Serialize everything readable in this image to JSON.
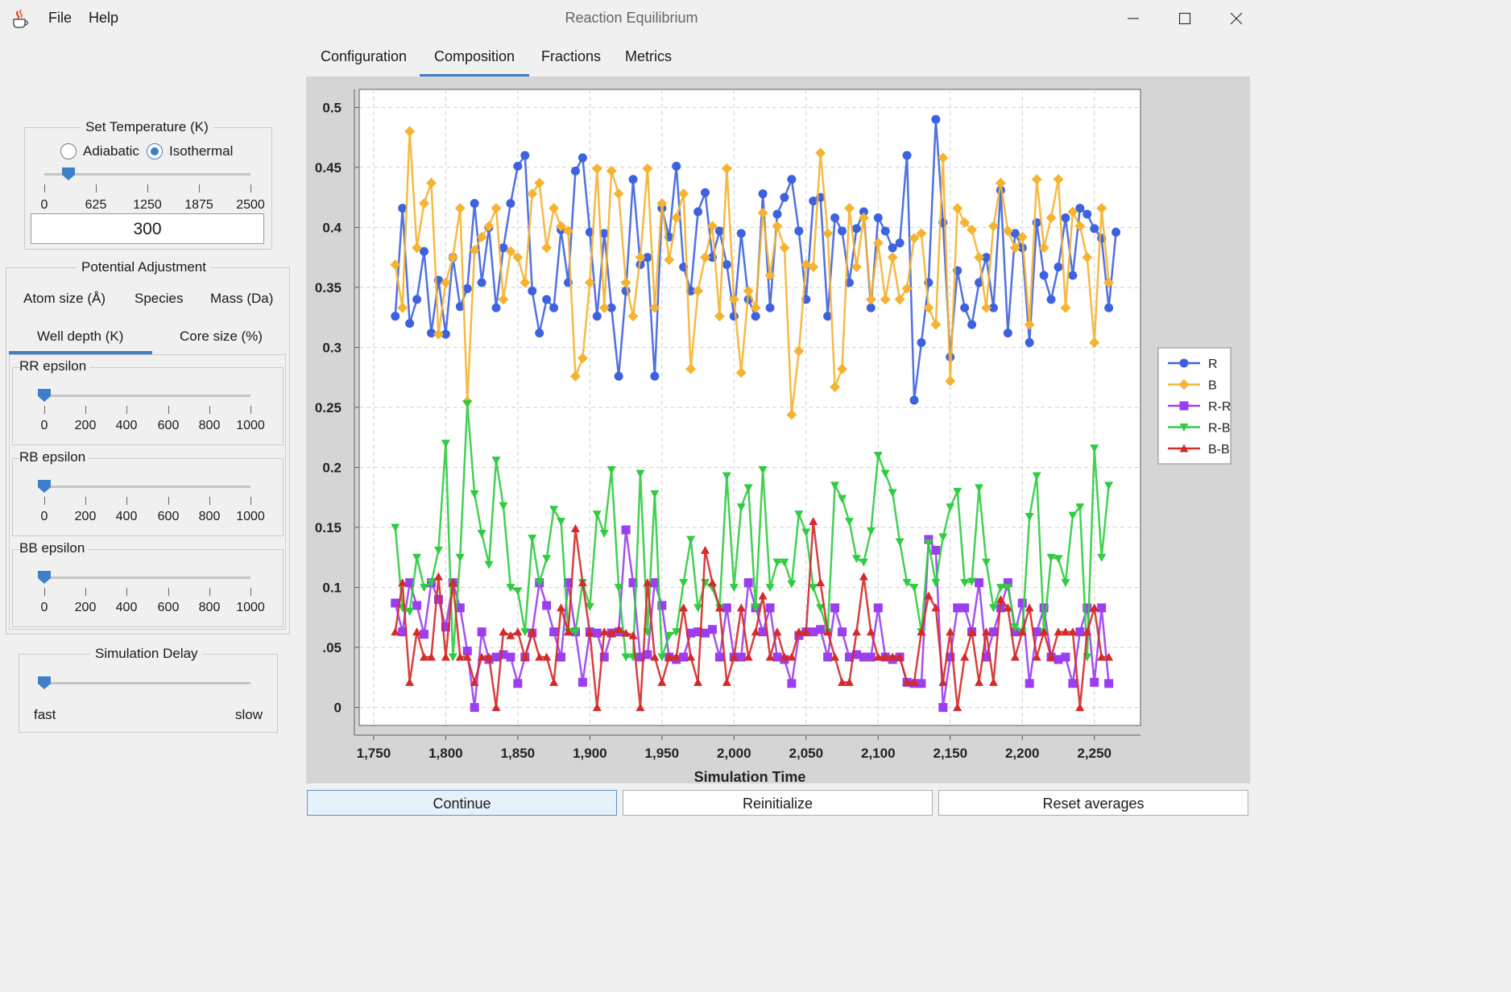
{
  "window": {
    "title": "Reaction Equilibrium",
    "menu": [
      "File",
      "Help"
    ]
  },
  "tabs": [
    "Configuration",
    "Composition",
    "Fractions",
    "Metrics"
  ],
  "active_tab": "Composition",
  "temperature": {
    "title": "Set Temperature (K)",
    "modes": [
      "Adiabatic",
      "Isothermal"
    ],
    "selected_mode": "Isothermal",
    "slider_ticks": [
      "0",
      "625",
      "1250",
      "1875",
      "2500"
    ],
    "slider_min": 0,
    "slider_max": 2500,
    "value": "300"
  },
  "potential": {
    "title": "Potential Adjustment",
    "tabs_row1": [
      "Atom size (Å)",
      "Species",
      "Mass (Da)"
    ],
    "tabs_row2": [
      "Well depth (K)",
      "Core size (%)"
    ],
    "active_tab": "Well depth (K)",
    "sliders": [
      {
        "label": "RR epsilon",
        "value": 0
      },
      {
        "label": "RB epsilon",
        "value": 0
      },
      {
        "label": "BB epsilon",
        "value": 0
      }
    ],
    "ticks": [
      "0",
      "200",
      "400",
      "600",
      "800",
      "1000"
    ],
    "min": 0,
    "max": 1000
  },
  "delay": {
    "title": "Simulation Delay",
    "left_label": "fast",
    "right_label": "slow",
    "value": 0
  },
  "buttons": [
    "Continue",
    "Reinitialize",
    "Reset averages"
  ],
  "chart_data": {
    "type": "line",
    "xlabel": "Simulation Time",
    "ylabel": "",
    "xlim": [
      1740,
      2282
    ],
    "ylim": [
      -0.015,
      0.515
    ],
    "x_ticks": [
      1750,
      1800,
      1850,
      1900,
      1950,
      2000,
      2050,
      2100,
      2150,
      2200,
      2250
    ],
    "x_tick_labels": [
      "1,750",
      "1,800",
      "1,850",
      "1,900",
      "1,950",
      "2,000",
      "2,050",
      "2,100",
      "2,150",
      "2,200",
      "2,250"
    ],
    "y_ticks": [
      0,
      0.05,
      0.1,
      0.15,
      0.2,
      0.25,
      0.3,
      0.35,
      0.4,
      0.45,
      0.5
    ],
    "y_tick_labels": [
      "0",
      ".05",
      "0.1",
      "0.15",
      "0.2",
      "0.25",
      "0.3",
      "0.35",
      "0.4",
      "0.45",
      "0.5"
    ],
    "grid": true,
    "legend_position": "right",
    "x_start": 1765,
    "x_step": 5,
    "series": [
      {
        "name": "R",
        "color": "#3d62e0",
        "marker": "circle",
        "values": [
          0.326,
          0.416,
          0.32,
          0.34,
          0.38,
          0.312,
          0.356,
          0.311,
          0.375,
          0.334,
          0.349,
          0.42,
          0.354,
          0.4,
          0.333,
          0.383,
          0.42,
          0.451,
          0.46,
          0.347,
          0.312,
          0.34,
          0.333,
          0.398,
          0.354,
          0.447,
          0.458,
          0.396,
          0.326,
          0.395,
          0.333,
          0.276,
          0.347,
          0.44,
          0.369,
          0.375,
          0.276,
          0.416,
          0.392,
          0.451,
          0.367,
          0.347,
          0.413,
          0.429,
          0.375,
          0.397,
          0.369,
          0.326,
          0.395,
          0.34,
          0.326,
          0.428,
          0.333,
          0.411,
          0.425,
          0.44,
          0.397,
          0.34,
          0.422,
          0.425,
          0.326,
          0.408,
          0.397,
          0.354,
          0.399,
          0.413,
          0.333,
          0.408,
          0.397,
          0.383,
          0.387,
          0.46,
          0.256,
          0.304,
          0.354,
          0.49,
          0.404,
          0.292,
          0.364,
          0.333,
          0.319,
          0.354,
          0.375,
          0.333,
          0.431,
          0.312,
          0.395,
          0.383,
          0.304,
          0.404,
          0.36,
          0.34,
          0.367,
          0.408,
          0.36,
          0.416,
          0.411,
          0.399,
          0.391,
          0.333,
          0.396
        ]
      },
      {
        "name": "B",
        "color": "#f5b330",
        "marker": "diamond",
        "values": [
          0.369,
          0.333,
          0.48,
          0.383,
          0.42,
          0.437,
          0.311,
          0.354,
          0.375,
          0.416,
          0.255,
          0.381,
          0.392,
          0.401,
          0.416,
          0.34,
          0.38,
          0.375,
          0.354,
          0.428,
          0.437,
          0.383,
          0.416,
          0.401,
          0.397,
          0.276,
          0.291,
          0.354,
          0.449,
          0.333,
          0.447,
          0.428,
          0.354,
          0.326,
          0.375,
          0.449,
          0.333,
          0.42,
          0.373,
          0.408,
          0.428,
          0.282,
          0.347,
          0.375,
          0.401,
          0.326,
          0.449,
          0.34,
          0.279,
          0.347,
          0.333,
          0.412,
          0.36,
          0.401,
          0.383,
          0.244,
          0.297,
          0.369,
          0.367,
          0.462,
          0.395,
          0.267,
          0.282,
          0.416,
          0.367,
          0.408,
          0.34,
          0.387,
          0.34,
          0.375,
          0.34,
          0.349,
          0.391,
          0.395,
          0.333,
          0.319,
          0.458,
          0.272,
          0.416,
          0.404,
          0.398,
          0.375,
          0.333,
          0.401,
          0.437,
          0.397,
          0.383,
          0.392,
          0.319,
          0.44,
          0.383,
          0.408,
          0.44,
          0.333,
          0.413,
          0.401,
          0.375,
          0.304,
          0.416,
          0.354
        ]
      },
      {
        "name": "R-R",
        "color": "#9b3ef0",
        "marker": "square",
        "values": [
          0.087,
          0.063,
          0.104,
          0.085,
          0.061,
          0.104,
          0.09,
          0.067,
          0.104,
          0.083,
          0.047,
          0.0,
          0.063,
          0.04,
          0.042,
          0.044,
          0.042,
          0.02,
          0.042,
          0.062,
          0.104,
          0.085,
          0.063,
          0.042,
          0.104,
          0.063,
          0.021,
          0.063,
          0.062,
          0.042,
          0.062,
          0.063,
          0.148,
          0.104,
          0.042,
          0.044,
          0.104,
          0.085,
          0.042,
          0.04,
          0.042,
          0.062,
          0.063,
          0.062,
          0.065,
          0.042,
          0.083,
          0.042,
          0.042,
          0.104,
          0.083,
          0.063,
          0.083,
          0.042,
          0.04,
          0.02,
          0.06,
          0.063,
          0.063,
          0.065,
          0.042,
          0.083,
          0.063,
          0.042,
          0.044,
          0.042,
          0.042,
          0.083,
          0.042,
          0.04,
          0.042,
          0.021,
          0.02,
          0.02,
          0.14,
          0.131,
          0.0,
          0.042,
          0.083,
          0.083,
          0.063,
          0.104,
          0.042,
          0.063,
          0.083,
          0.104,
          0.063,
          0.087,
          0.02,
          0.063,
          0.083,
          0.042,
          0.04,
          0.042,
          0.02,
          0.063,
          0.083,
          0.021,
          0.083,
          0.02
        ]
      },
      {
        "name": "R-B",
        "color": "#2ecc40",
        "marker": "triangle-down",
        "values": [
          0.15,
          0.083,
          0.08,
          0.125,
          0.1,
          0.104,
          0.131,
          0.22,
          0.042,
          0.125,
          0.253,
          0.178,
          0.145,
          0.119,
          0.206,
          0.168,
          0.1,
          0.097,
          0.063,
          0.141,
          0.104,
          0.124,
          0.165,
          0.155,
          0.063,
          0.063,
          0.104,
          0.084,
          0.161,
          0.145,
          0.198,
          0.1,
          0.042,
          0.042,
          0.195,
          0.063,
          0.178,
          0.042,
          0.06,
          0.063,
          0.104,
          0.14,
          0.083,
          0.104,
          0.1,
          0.083,
          0.193,
          0.1,
          0.167,
          0.183,
          0.083,
          0.198,
          0.1,
          0.121,
          0.121,
          0.103,
          0.161,
          0.146,
          0.1,
          0.083,
          0.063,
          0.185,
          0.174,
          0.155,
          0.124,
          0.121,
          0.147,
          0.21,
          0.195,
          0.179,
          0.138,
          0.104,
          0.1,
          0.063,
          0.137,
          0.104,
          0.142,
          0.167,
          0.18,
          0.104,
          0.105,
          0.183,
          0.121,
          0.083,
          0.1,
          0.1,
          0.067,
          0.063,
          0.159,
          0.193,
          0.063,
          0.125,
          0.124,
          0.104,
          0.16,
          0.167,
          0.042,
          0.216,
          0.125,
          0.185
        ]
      },
      {
        "name": "B-B",
        "color": "#d42a2a",
        "marker": "triangle-up",
        "values": [
          0.063,
          0.104,
          0.021,
          0.063,
          0.042,
          0.042,
          0.109,
          0.042,
          0.104,
          0.042,
          0.042,
          0.021,
          0.042,
          0.042,
          0.0,
          0.063,
          0.06,
          0.063,
          0.042,
          0.063,
          0.042,
          0.042,
          0.021,
          0.083,
          0.063,
          0.149,
          0.104,
          0.062,
          0.0,
          0.063,
          0.062,
          0.065,
          0.062,
          0.06,
          0.0,
          0.104,
          0.042,
          0.021,
          0.042,
          0.042,
          0.083,
          0.042,
          0.021,
          0.131,
          0.104,
          0.083,
          0.021,
          0.042,
          0.083,
          0.042,
          0.063,
          0.093,
          0.042,
          0.063,
          0.042,
          0.042,
          0.063,
          0.063,
          0.155,
          0.104,
          0.063,
          0.042,
          0.021,
          0.021,
          0.063,
          0.109,
          0.063,
          0.042,
          0.042,
          0.042,
          0.042,
          0.021,
          0.021,
          0.063,
          0.093,
          0.083,
          0.021,
          0.063,
          0.0,
          0.042,
          0.063,
          0.021,
          0.063,
          0.021,
          0.09,
          0.083,
          0.042,
          0.063,
          0.083,
          0.042,
          0.063,
          0.042,
          0.063,
          0.063,
          0.063,
          0.0,
          0.063,
          0.083,
          0.042,
          0.042
        ]
      }
    ]
  }
}
